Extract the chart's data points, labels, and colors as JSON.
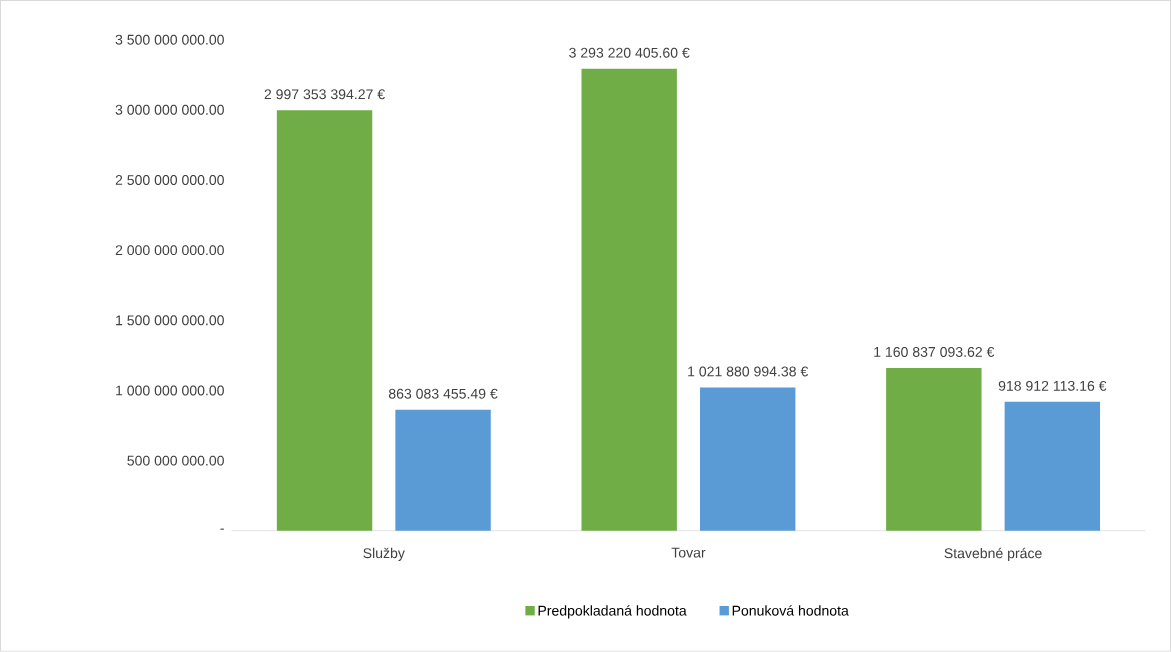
{
  "chart_data": {
    "type": "bar",
    "categories": [
      "Služby",
      "Tovar",
      "Stavebné práce"
    ],
    "series": [
      {
        "name": "Predpokladaná hodnota",
        "color": "#70ad47",
        "values": [
          2997353394.27,
          3293220405.6,
          1160837093.62
        ],
        "value_labels": [
          "2 997 353 394.27 €",
          "3 293 220 405.60 €",
          "1 160 837 093.62 €"
        ]
      },
      {
        "name": "Ponuková hodnota",
        "color": "#5b9bd5",
        "values": [
          863083455.49,
          1021880994.38,
          918912113.16
        ],
        "value_labels": [
          "863 083 455.49 €",
          "1 021 880 994.38 €",
          "918 912 113.16 €"
        ]
      }
    ],
    "ylim": [
      0,
      3500000000
    ],
    "yticks": [
      {
        "value": 0,
        "label": "-"
      },
      {
        "value": 500000000,
        "label": "500 000 000.00"
      },
      {
        "value": 1000000000,
        "label": "1 000 000 000.00"
      },
      {
        "value": 1500000000,
        "label": "1 500 000 000.00"
      },
      {
        "value": 2000000000,
        "label": "2 000 000 000.00"
      },
      {
        "value": 2500000000,
        "label": "2 500 000 000.00"
      },
      {
        "value": 3000000000,
        "label": "3 000 000 000.00"
      },
      {
        "value": 3500000000,
        "label": "3 500 000 000.00"
      }
    ],
    "legend": "bottom"
  }
}
